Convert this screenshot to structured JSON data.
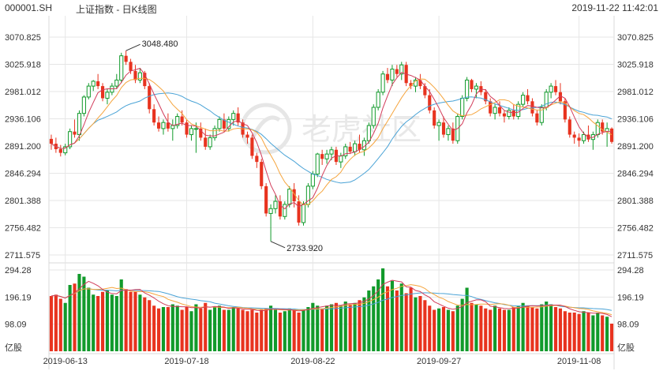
{
  "header": {
    "symbol": "000001.SH",
    "name": "上证指数 - 日K线图",
    "datetime": "2019-11-22 11:42:01"
  },
  "watermark": {
    "text": "老虎社区",
    "icon": "tiger-logo-icon"
  },
  "colors": {
    "up": "#e8331f",
    "down": "#119a2b",
    "ma5": "#d23c5a",
    "ma10": "#f5a43c",
    "ma20": "#4aa3d6",
    "grid": "#e6e6e6"
  },
  "chart_data": {
    "type": "candlestick",
    "price_axis": {
      "ylim": [
        2711.575,
        3070.825
      ],
      "ticks": [
        "3070.825",
        "3025.918",
        "2981.012",
        "2936.106",
        "2891.200",
        "2846.294",
        "2801.388",
        "2756.482",
        "2711.575"
      ]
    },
    "volume_axis": {
      "ylim": [
        0,
        294.28
      ],
      "ticks": [
        "294.28",
        "196.19",
        "98.09"
      ],
      "unit": "亿股"
    },
    "dates": [
      "2019-06-13",
      "2019-07-18",
      "2019-08-22",
      "2019-09-27",
      "2019-11-08"
    ],
    "annotations": [
      {
        "label": "3048.480"
      },
      {
        "label": "2733.920"
      }
    ],
    "ohlc": [
      [
        2903,
        2910,
        2885,
        2895
      ],
      [
        2895,
        2905,
        2880,
        2886
      ],
      [
        2886,
        2893,
        2874,
        2880
      ],
      [
        2880,
        2895,
        2876,
        2890
      ],
      [
        2890,
        2920,
        2886,
        2915
      ],
      [
        2915,
        2935,
        2905,
        2910
      ],
      [
        2910,
        2950,
        2900,
        2945
      ],
      [
        2945,
        2975,
        2940,
        2972
      ],
      [
        2972,
        2995,
        2968,
        2990
      ],
      [
        2990,
        3000,
        2982,
        2998
      ],
      [
        2998,
        3010,
        2985,
        2990
      ],
      [
        2990,
        2995,
        2965,
        2970
      ],
      [
        2970,
        2985,
        2960,
        2980
      ],
      [
        2980,
        2995,
        2975,
        2990
      ],
      [
        2990,
        3010,
        2985,
        3000
      ],
      [
        3000,
        3045,
        2995,
        3040
      ],
      [
        3040,
        3048.48,
        3025,
        3030
      ],
      [
        3030,
        3035,
        3010,
        3015
      ],
      [
        3015,
        3025,
        2995,
        3000
      ],
      [
        3000,
        3020,
        2995,
        3012
      ],
      [
        3012,
        3015,
        2985,
        2990
      ],
      [
        2990,
        2995,
        2945,
        2952
      ],
      [
        2952,
        2960,
        2925,
        2930
      ],
      [
        2930,
        2940,
        2915,
        2920
      ],
      [
        2920,
        2935,
        2910,
        2930
      ],
      [
        2930,
        2945,
        2915,
        2920
      ],
      [
        2920,
        2935,
        2900,
        2925
      ],
      [
        2925,
        2945,
        2920,
        2940
      ],
      [
        2940,
        2950,
        2925,
        2930
      ],
      [
        2930,
        2935,
        2905,
        2910
      ],
      [
        2910,
        2925,
        2900,
        2920
      ],
      [
        2920,
        2930,
        2880,
        2920
      ],
      [
        2920,
        2930,
        2900,
        2905
      ],
      [
        2905,
        2920,
        2885,
        2890
      ],
      [
        2890,
        2910,
        2885,
        2905
      ],
      [
        2905,
        2925,
        2900,
        2920
      ],
      [
        2920,
        2940,
        2915,
        2935
      ],
      [
        2935,
        2945,
        2915,
        2920
      ],
      [
        2920,
        2940,
        2915,
        2935
      ],
      [
        2935,
        2950,
        2925,
        2945
      ],
      [
        2945,
        2955,
        2925,
        2930
      ],
      [
        2930,
        2935,
        2905,
        2910
      ],
      [
        2910,
        2915,
        2895,
        2905
      ],
      [
        2905,
        2910,
        2870,
        2875
      ],
      [
        2875,
        2880,
        2855,
        2865
      ],
      [
        2865,
        2870,
        2820,
        2825
      ],
      [
        2825,
        2830,
        2775,
        2780
      ],
      [
        2780,
        2795,
        2733.92,
        2788
      ],
      [
        2788,
        2810,
        2780,
        2800
      ],
      [
        2800,
        2810,
        2770,
        2775
      ],
      [
        2775,
        2800,
        2770,
        2795
      ],
      [
        2795,
        2825,
        2790,
        2820
      ],
      [
        2820,
        2830,
        2790,
        2800
      ],
      [
        2800,
        2810,
        2760,
        2765
      ],
      [
        2765,
        2800,
        2760,
        2795
      ],
      [
        2795,
        2830,
        2790,
        2825
      ],
      [
        2825,
        2850,
        2820,
        2845
      ],
      [
        2845,
        2880,
        2840,
        2878
      ],
      [
        2878,
        2885,
        2860,
        2870
      ],
      [
        2870,
        2885,
        2862,
        2878
      ],
      [
        2878,
        2890,
        2868,
        2885
      ],
      [
        2885,
        2890,
        2860,
        2865
      ],
      [
        2865,
        2880,
        2855,
        2875
      ],
      [
        2875,
        2895,
        2870,
        2890
      ],
      [
        2890,
        2898,
        2878,
        2882
      ],
      [
        2882,
        2900,
        2875,
        2895
      ],
      [
        2895,
        2910,
        2880,
        2885
      ],
      [
        2885,
        2905,
        2875,
        2900
      ],
      [
        2900,
        2930,
        2895,
        2925
      ],
      [
        2925,
        2960,
        2920,
        2955
      ],
      [
        2955,
        2985,
        2950,
        2980
      ],
      [
        2980,
        3015,
        2975,
        3010
      ],
      [
        3010,
        3020,
        2995,
        3000
      ],
      [
        3000,
        3025,
        2990,
        3018
      ],
      [
        3018,
        3025,
        3005,
        3010
      ],
      [
        3010,
        3030,
        3000,
        3025
      ],
      [
        3025,
        3030,
        2990,
        2995
      ],
      [
        2995,
        3000,
        2985,
        2990
      ],
      [
        2990,
        3005,
        2980,
        3000
      ],
      [
        3000,
        3010,
        2985,
        2990
      ],
      [
        2990,
        2995,
        2970,
        2975
      ],
      [
        2975,
        2985,
        2945,
        2950
      ],
      [
        2950,
        2955,
        2920,
        2925
      ],
      [
        2925,
        2935,
        2900,
        2930
      ],
      [
        2930,
        2940,
        2905,
        2910
      ],
      [
        2910,
        2925,
        2900,
        2920
      ],
      [
        2920,
        2930,
        2895,
        2900
      ],
      [
        2900,
        2945,
        2895,
        2940
      ],
      [
        2940,
        2975,
        2935,
        2970
      ],
      [
        2970,
        3005,
        2965,
        3000
      ],
      [
        3000,
        3002,
        2980,
        2985
      ],
      [
        2985,
        2995,
        2970,
        2990
      ],
      [
        2990,
        2998,
        2975,
        2980
      ],
      [
        2980,
        2985,
        2960,
        2965
      ],
      [
        2965,
        2970,
        2940,
        2945
      ],
      [
        2945,
        2960,
        2935,
        2955
      ],
      [
        2955,
        2965,
        2940,
        2945
      ],
      [
        2945,
        2950,
        2930,
        2940
      ],
      [
        2940,
        2955,
        2935,
        2950
      ],
      [
        2950,
        2960,
        2935,
        2940
      ],
      [
        2940,
        2965,
        2935,
        2960
      ],
      [
        2960,
        2980,
        2955,
        2975
      ],
      [
        2975,
        2985,
        2960,
        2965
      ],
      [
        2965,
        2970,
        2940,
        2945
      ],
      [
        2945,
        2950,
        2925,
        2930
      ],
      [
        2930,
        2960,
        2925,
        2955
      ],
      [
        2955,
        2985,
        2950,
        2980
      ],
      [
        2980,
        2995,
        2970,
        2990
      ],
      [
        2990,
        3000,
        2975,
        2980
      ],
      [
        2980,
        2995,
        2960,
        2965
      ],
      [
        2965,
        2970,
        2930,
        2935
      ],
      [
        2935,
        2940,
        2905,
        2910
      ],
      [
        2910,
        2915,
        2895,
        2905
      ],
      [
        2905,
        2912,
        2890,
        2900
      ],
      [
        2900,
        2915,
        2895,
        2910
      ],
      [
        2910,
        2925,
        2898,
        2902
      ],
      [
        2902,
        2915,
        2885,
        2910
      ],
      [
        2910,
        2935,
        2905,
        2930
      ],
      [
        2930,
        2935,
        2910,
        2915
      ],
      [
        2915,
        2930,
        2890,
        2920
      ],
      [
        2920,
        2922,
        2895,
        2898
      ]
    ],
    "volume": [
      200,
      205,
      190,
      175,
      240,
      245,
      280,
      270,
      230,
      205,
      200,
      215,
      220,
      205,
      200,
      260,
      225,
      215,
      215,
      205,
      195,
      185,
      165,
      155,
      160,
      160,
      170,
      165,
      150,
      160,
      145,
      170,
      155,
      175,
      150,
      160,
      165,
      150,
      150,
      160,
      155,
      150,
      145,
      150,
      140,
      150,
      155,
      165,
      150,
      140,
      145,
      155,
      150,
      140,
      150,
      160,
      175,
      165,
      155,
      165,
      170,
      175,
      165,
      180,
      170,
      175,
      185,
      195,
      220,
      235,
      260,
      300,
      235,
      255,
      220,
      245,
      210,
      230,
      195,
      200,
      185,
      165,
      150,
      155,
      160,
      150,
      145,
      165,
      190,
      230,
      175,
      170,
      165,
      155,
      150,
      165,
      155,
      150,
      150,
      160,
      165,
      175,
      165,
      160,
      155,
      170,
      180,
      170,
      160,
      155,
      145,
      140,
      140,
      135,
      145,
      140,
      130,
      140,
      130,
      125,
      100
    ]
  }
}
